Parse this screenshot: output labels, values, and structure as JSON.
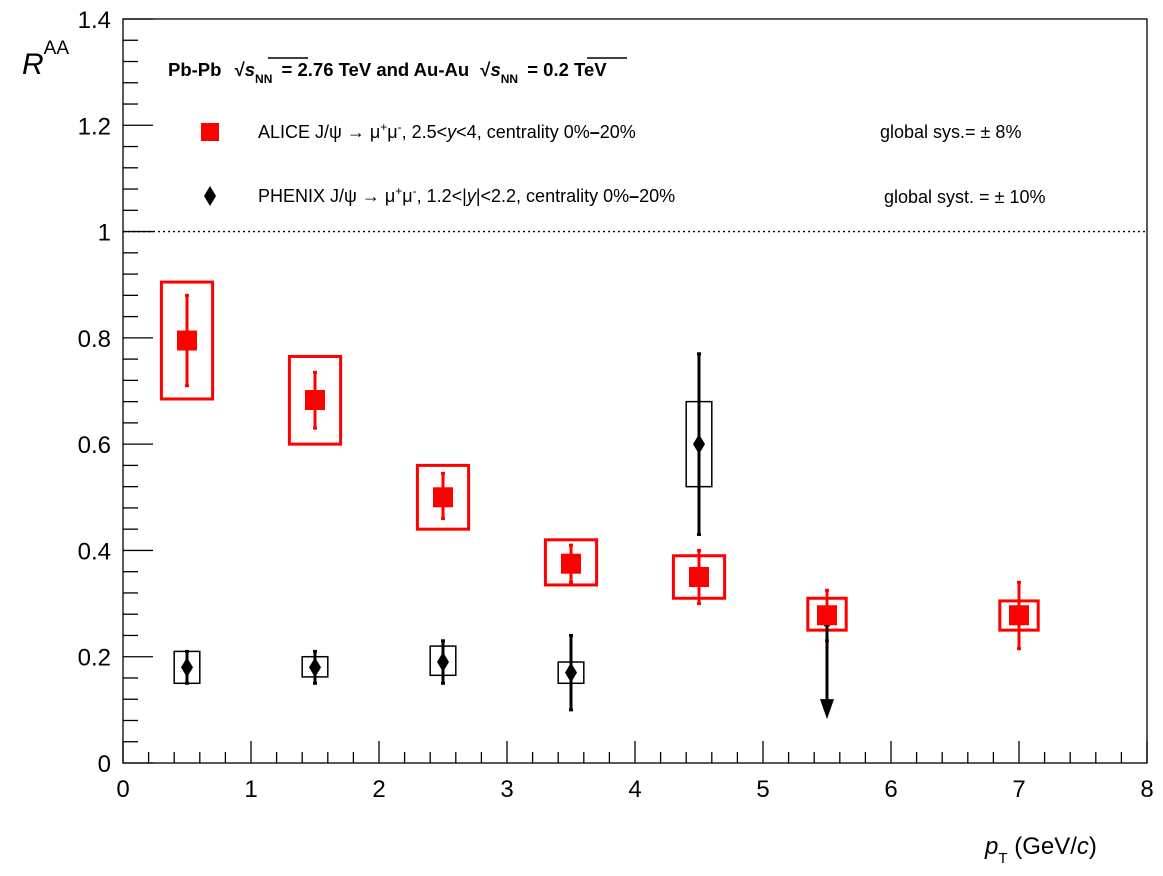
{
  "chart_data": {
    "type": "scatter",
    "title": "",
    "header": "Pb-Pb √s_NN = 2.76 TeV and Au-Au √s_NN = 0.2 TeV",
    "xlabel": "p_T (GeV/c)",
    "ylabel": "R_AA",
    "xlim": [
      0,
      8
    ],
    "ylim": [
      0,
      1.4
    ],
    "x_ticks": [
      "0",
      "1",
      "2",
      "3",
      "4",
      "5",
      "6",
      "7",
      "8"
    ],
    "y_ticks": [
      "0",
      "0.2",
      "0.4",
      "0.6",
      "0.8",
      "1",
      "1.2",
      "1.4"
    ],
    "reference_line": {
      "y": 1,
      "style": "dotted"
    },
    "grid": false,
    "legend_position": "top",
    "series": [
      {
        "name": "ALICE J/ψ → μ⁺μ⁻, 2.5<y<4, centrality 0%–20%",
        "global_sys": "global sys.= ± 8%",
        "marker": "square",
        "color": "#ff0000",
        "points": [
          {
            "x": 0.5,
            "y": 0.795,
            "stat": [
              0.71,
              0.88
            ],
            "sys": [
              0.685,
              0.905
            ],
            "sys_dx": 0.2
          },
          {
            "x": 1.5,
            "y": 0.683,
            "stat": [
              0.63,
              0.735
            ],
            "sys": [
              0.6,
              0.765
            ],
            "sys_dx": 0.2
          },
          {
            "x": 2.5,
            "y": 0.5,
            "stat": [
              0.46,
              0.545
            ],
            "sys": [
              0.44,
              0.56
            ],
            "sys_dx": 0.2
          },
          {
            "x": 3.5,
            "y": 0.375,
            "stat": [
              0.34,
              0.41
            ],
            "sys": [
              0.335,
              0.42
            ],
            "sys_dx": 0.2
          },
          {
            "x": 4.5,
            "y": 0.35,
            "stat": [
              0.3,
              0.4
            ],
            "sys": [
              0.31,
              0.39
            ],
            "sys_dx": 0.2
          },
          {
            "x": 5.5,
            "y": 0.278,
            "stat": [
              0.23,
              0.325
            ],
            "sys": [
              0.25,
              0.31
            ],
            "sys_dx": 0.15
          },
          {
            "x": 7.0,
            "y": 0.278,
            "stat": [
              0.215,
              0.34
            ],
            "sys": [
              0.25,
              0.305
            ],
            "sys_dx": 0.15
          }
        ]
      },
      {
        "name": "PHENIX J/ψ → μ⁺μ⁻, 1.2<|y|<2.2, centrality 0%–20%",
        "global_sys": "global syst. = ± 10%",
        "marker": "diamond",
        "color": "#000000",
        "points": [
          {
            "x": 0.5,
            "y": 0.18,
            "stat": [
              0.15,
              0.21
            ],
            "sys": [
              0.15,
              0.21
            ],
            "sys_dx": 0.1
          },
          {
            "x": 1.5,
            "y": 0.18,
            "stat": [
              0.15,
              0.21
            ],
            "sys": [
              0.162,
              0.2
            ],
            "sys_dx": 0.1
          },
          {
            "x": 2.5,
            "y": 0.19,
            "stat": [
              0.15,
              0.23
            ],
            "sys": [
              0.165,
              0.22
            ],
            "sys_dx": 0.1
          },
          {
            "x": 3.5,
            "y": 0.17,
            "stat": [
              0.1,
              0.24
            ],
            "sys": [
              0.15,
              0.19
            ],
            "sys_dx": 0.1
          },
          {
            "x": 4.5,
            "y": 0.6,
            "stat": [
              0.43,
              0.77
            ],
            "sys": [
              0.52,
              0.68
            ],
            "sys_dx": 0.1
          },
          {
            "x": 5.5,
            "y": 0.26,
            "upper_limit": true,
            "arrow_to": 0.09
          }
        ]
      }
    ]
  },
  "legend": {
    "alice": {
      "pre": "ALICE J/ψ → μ",
      "sup": "+",
      "mid": "μ",
      "sup2": "-",
      "post1": ", 2.5<",
      "ital": "y",
      "post2": "<4, centrality 0%",
      "dash": "–",
      "post3": "20%",
      "sys": "global sys.= ± 8%"
    },
    "phenix": {
      "pre": "PHENIX J/ψ → μ",
      "sup": "+",
      "mid": "μ",
      "sup2": "-",
      "post1": ", 1.2<|",
      "ital": "y",
      "post2": "|<2.2, centrality 0%",
      "dash": "–",
      "post3": "20%",
      "sys": "global syst. = ± 10%"
    }
  },
  "header_parts": {
    "a": "Pb-Pb",
    "s": "s",
    "nn": "NN",
    "b": "= 2.76 TeV and Au-Au",
    "c": "= 0.2 TeV"
  },
  "axis_labels": {
    "y_main": "R",
    "y_sub": "AA",
    "x_main": "p",
    "x_sub": "T",
    "x_rest": " (GeV/",
    "x_c": "c",
    "x_close": ")"
  }
}
